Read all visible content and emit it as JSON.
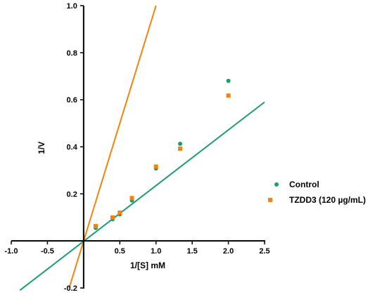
{
  "chart_data": {
    "type": "scatter",
    "xlabel": "1/[S] mM",
    "ylabel": "1/V",
    "xlim": [
      -1.0,
      2.5
    ],
    "ylim": [
      -0.2,
      1.0
    ],
    "x_ticks": [
      -1.0,
      -0.5,
      0.0,
      0.5,
      1.0,
      1.5,
      2.0,
      2.5
    ],
    "x_tick_labels": [
      "-1.0",
      "-0.5",
      "",
      "0.5",
      "1.0",
      "1.5",
      "2.0",
      "2.5"
    ],
    "y_ticks": [
      -0.2,
      0.2,
      0.4,
      0.6,
      0.8,
      1.0
    ],
    "y_tick_labels": [
      "-0.2",
      "0.2",
      "0.4",
      "0.6",
      "0.8",
      "1.0"
    ],
    "grid": false,
    "legend_position": "right",
    "series": [
      {
        "name": "Control",
        "color": "#1a9c73",
        "marker": "circle",
        "x": [
          0.167,
          0.4,
          0.5,
          0.667,
          1.0,
          1.333,
          2.0
        ],
        "y": [
          0.055,
          0.092,
          0.113,
          0.172,
          0.308,
          0.413,
          0.68
        ]
      },
      {
        "name": "TZDD3 (120 µg/mL)",
        "color": "#f5820b",
        "marker": "square",
        "x": [
          0.167,
          0.4,
          0.5,
          0.667,
          1.0,
          1.333,
          2.0
        ],
        "y": [
          0.063,
          0.1,
          0.12,
          0.182,
          0.316,
          0.392,
          0.618
        ]
      }
    ],
    "fit_lines": [
      {
        "series": "Control",
        "color": "#1a9c73",
        "x": [
          -0.88,
          2.5
        ],
        "y": [
          -0.21,
          0.59
        ]
      },
      {
        "series": "TZDD3 (120 µg/mL)",
        "color": "#f5820b",
        "x": [
          -0.2,
          1.0
        ],
        "y": [
          -0.2,
          1.0
        ]
      }
    ]
  }
}
